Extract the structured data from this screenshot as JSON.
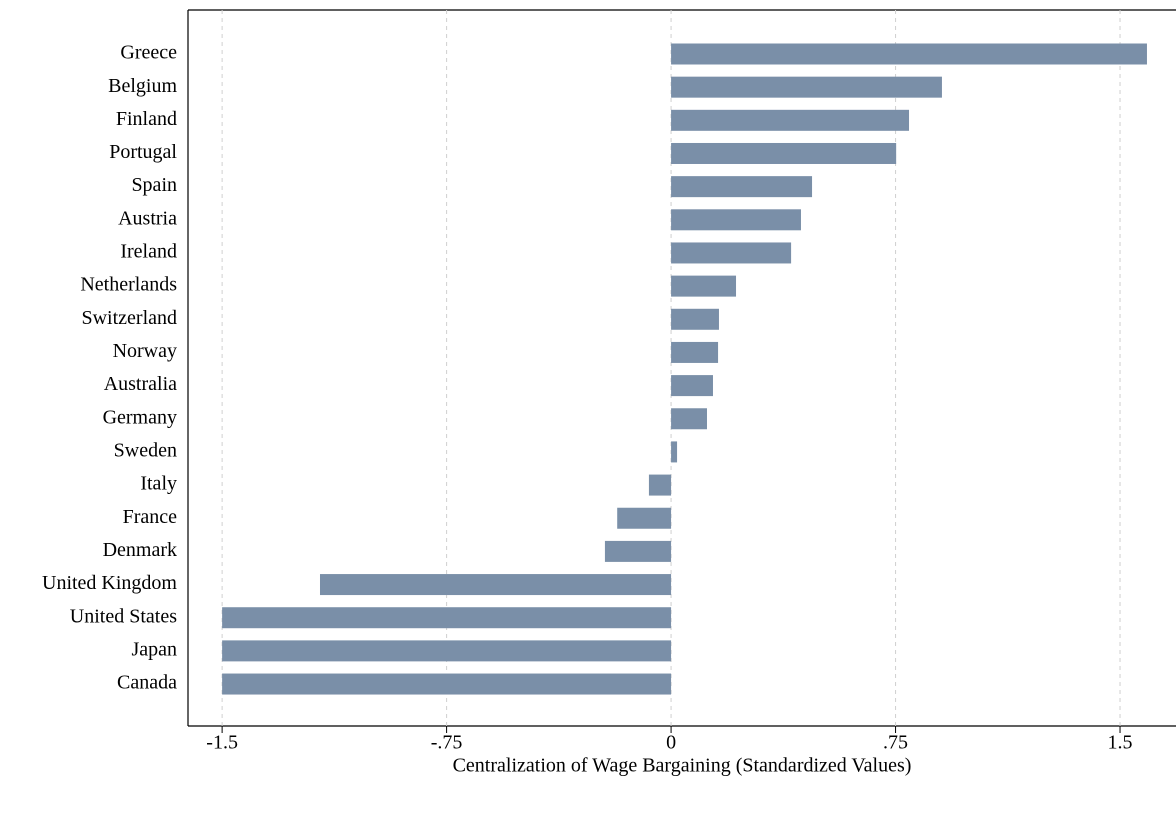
{
  "chart_data": {
    "type": "hbar",
    "x_label": "Centralization of Wage Bargaining (Standardized Values)",
    "categories": [
      "Greece",
      "Belgium",
      "Finland",
      "Portugal",
      "Spain",
      "Austria",
      "Ireland",
      "Netherlands",
      "Switzerland",
      "Norway",
      "Australia",
      "Germany",
      "Sweden",
      "Italy",
      "France",
      "Denmark",
      "United Kingdom",
      "United States",
      "Japan",
      "Canada"
    ],
    "values": [
      1.59,
      0.905,
      0.795,
      0.752,
      0.471,
      0.434,
      0.401,
      0.217,
      0.16,
      0.157,
      0.14,
      0.12,
      0.02,
      -0.074,
      -0.18,
      -0.221,
      -1.173,
      -1.5,
      -1.5,
      -1.5
    ],
    "color": "#7a8fa8",
    "xlim": [
      -1.614,
      1.687
    ],
    "xticks": [
      -1.5,
      {
        "value": -0.75,
        "label": "-.75"
      },
      0,
      {
        "value": 0.75,
        "label": ".75"
      },
      1.5
    ],
    "grid": true
  }
}
